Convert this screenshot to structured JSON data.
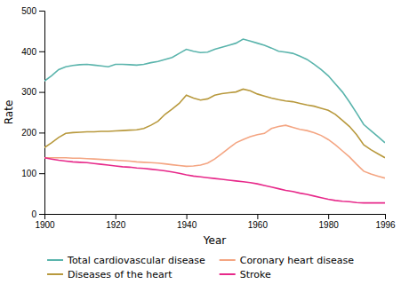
{
  "chart_data": {
    "type": "line",
    "xlabel": "Year",
    "ylabel": "Rate",
    "x": [
      1900,
      1902,
      1904,
      1906,
      1908,
      1910,
      1912,
      1914,
      1916,
      1918,
      1920,
      1922,
      1924,
      1926,
      1928,
      1930,
      1932,
      1934,
      1936,
      1938,
      1940,
      1942,
      1944,
      1946,
      1948,
      1950,
      1952,
      1954,
      1956,
      1958,
      1960,
      1962,
      1964,
      1966,
      1968,
      1970,
      1972,
      1974,
      1976,
      1978,
      1980,
      1982,
      1984,
      1986,
      1988,
      1990,
      1992,
      1994,
      1996
    ],
    "xlim": [
      1900,
      1996
    ],
    "xticks": [
      1900,
      1920,
      1940,
      1960,
      1980,
      1996
    ],
    "ylim": [
      0,
      500
    ],
    "yticks": [
      0,
      100,
      200,
      300,
      400,
      500
    ],
    "grid": false,
    "legend": "bottom",
    "series": [
      {
        "name": "Total cardiovascular disease",
        "color": "#5ab4ac",
        "values": [
          327,
          340,
          355,
          362,
          365,
          367,
          368,
          366,
          364,
          362,
          368,
          368,
          367,
          366,
          368,
          372,
          375,
          380,
          385,
          395,
          405,
          400,
          397,
          398,
          405,
          410,
          415,
          420,
          430,
          425,
          420,
          415,
          408,
          400,
          398,
          395,
          388,
          380,
          368,
          355,
          340,
          320,
          300,
          275,
          248,
          220,
          205,
          190,
          175
        ]
      },
      {
        "name": "Diseases of the heart",
        "color": "#b8993d",
        "values": [
          163,
          175,
          188,
          198,
          200,
          201,
          202,
          202,
          203,
          203,
          204,
          205,
          206,
          207,
          210,
          218,
          228,
          245,
          258,
          272,
          292,
          285,
          280,
          283,
          292,
          296,
          298,
          300,
          307,
          303,
          295,
          290,
          285,
          281,
          278,
          276,
          272,
          268,
          265,
          260,
          255,
          245,
          230,
          215,
          195,
          170,
          158,
          148,
          138
        ]
      },
      {
        "name": "Coronary heart disease",
        "color": "#f4a582",
        "values": [
          138,
          138,
          138,
          138,
          137,
          137,
          136,
          135,
          134,
          133,
          132,
          131,
          130,
          128,
          127,
          126,
          125,
          123,
          121,
          119,
          117,
          118,
          120,
          125,
          135,
          148,
          162,
          175,
          183,
          190,
          195,
          198,
          210,
          215,
          218,
          213,
          208,
          205,
          200,
          193,
          183,
          170,
          155,
          140,
          122,
          105,
          98,
          93,
          88
        ]
      },
      {
        "name": "Stroke",
        "color": "#e7298a",
        "values": [
          138,
          135,
          132,
          130,
          128,
          127,
          126,
          124,
          122,
          120,
          118,
          116,
          115,
          113,
          112,
          110,
          108,
          106,
          103,
          100,
          96,
          93,
          91,
          89,
          87,
          85,
          83,
          81,
          79,
          77,
          74,
          70,
          66,
          62,
          58,
          55,
          51,
          48,
          44,
          40,
          36,
          33,
          31,
          30,
          28,
          27,
          27,
          27,
          27
        ]
      }
    ]
  }
}
